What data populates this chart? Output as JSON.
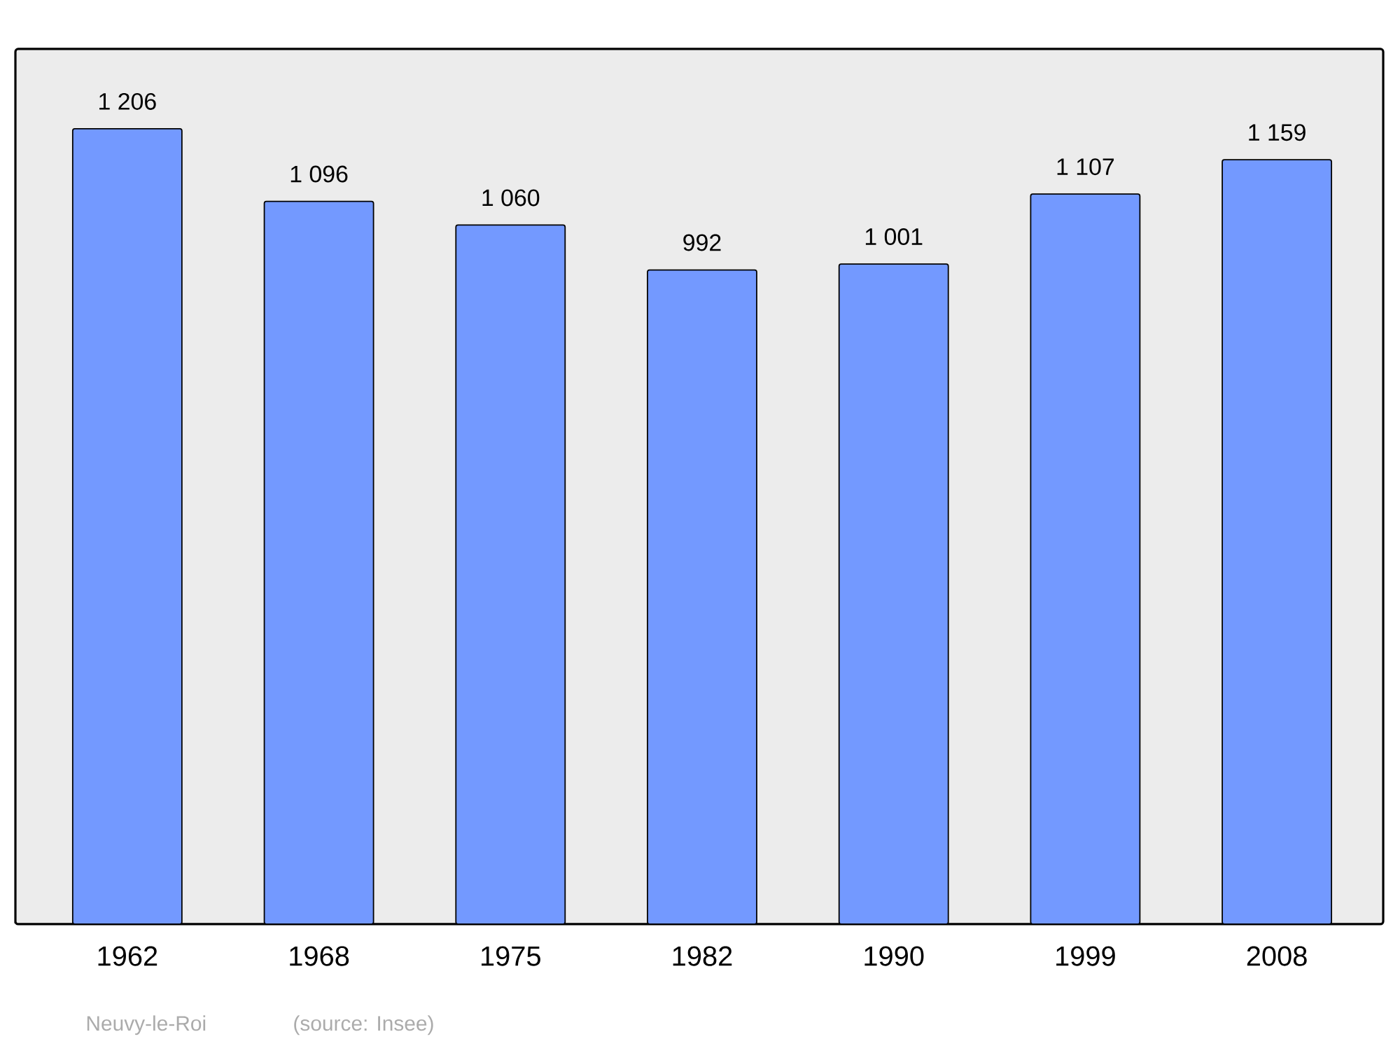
{
  "chart_data": {
    "type": "bar",
    "categories": [
      "1962",
      "1968",
      "1975",
      "1982",
      "1990",
      "1999",
      "2008"
    ],
    "values": [
      1206,
      1096,
      1060,
      992,
      1001,
      1107,
      1159
    ],
    "value_labels": [
      "1 206",
      "1 096",
      "1 060",
      "992",
      "1 001",
      "1 107",
      "1 159"
    ],
    "color": "#7399ff",
    "ylim": [
      0,
      1327
    ],
    "annotations": [
      "Neuvy-le-Roi",
      "(source: Insee)"
    ]
  }
}
